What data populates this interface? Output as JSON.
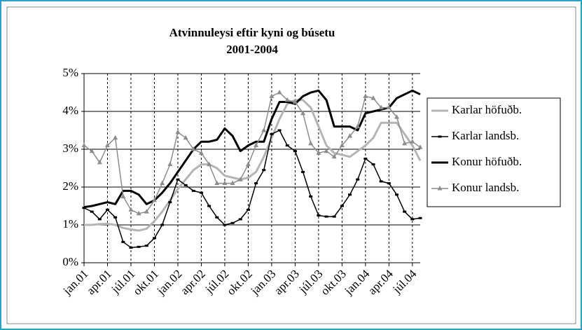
{
  "chart_data": {
    "type": "line",
    "title": "Atvinnuleysi eftir kyni og búsetu",
    "subtitle": "2001-2004",
    "categories": [
      "jan.01",
      null,
      null,
      "apr.01",
      null,
      null,
      "júl.01",
      null,
      null,
      "okt.01",
      null,
      null,
      "jan.02",
      null,
      null,
      "apr.02",
      null,
      null,
      "júl.02",
      null,
      null,
      "okt.02",
      null,
      null,
      "jan.03",
      null,
      null,
      "apr.03",
      null,
      null,
      "júl.03",
      null,
      null,
      "okt.03",
      null,
      null,
      "jan.04",
      null,
      null,
      "apr.04",
      null,
      null,
      "júl.04",
      null
    ],
    "series": [
      {
        "name": "Karlar höfuðb.",
        "color": "#b4b4b4",
        "marker": "none",
        "values": [
          1.0,
          1.0,
          1.02,
          1.03,
          1.0,
          0.92,
          0.88,
          0.85,
          0.9,
          1.1,
          1.35,
          1.65,
          1.95,
          2.2,
          2.45,
          2.6,
          2.6,
          2.5,
          2.3,
          2.25,
          2.2,
          2.25,
          2.4,
          2.8,
          3.3,
          3.8,
          4.2,
          4.3,
          4.3,
          4.1,
          3.6,
          3.1,
          2.9,
          2.85,
          2.8,
          2.95,
          3.1,
          3.3,
          3.7,
          3.7,
          3.7,
          3.4,
          3.1,
          2.7
        ]
      },
      {
        "name": "Karlar landsb.",
        "color": "#000000",
        "marker": "dash",
        "values": [
          1.45,
          1.35,
          1.15,
          1.4,
          1.2,
          0.55,
          0.4,
          0.42,
          0.45,
          0.65,
          1.0,
          1.6,
          2.2,
          2.05,
          1.9,
          1.85,
          1.5,
          1.2,
          1.0,
          1.05,
          1.15,
          1.4,
          2.1,
          2.45,
          3.4,
          3.5,
          3.1,
          2.95,
          2.4,
          1.75,
          1.25,
          1.22,
          1.22,
          1.5,
          1.8,
          2.2,
          2.75,
          2.6,
          2.15,
          2.1,
          1.8,
          1.35,
          1.15,
          1.18
        ]
      },
      {
        "name": "Konur höfuðb.",
        "color": "#000000",
        "marker": "none",
        "values": [
          1.47,
          1.5,
          1.55,
          1.6,
          1.55,
          1.9,
          1.9,
          1.8,
          1.55,
          1.65,
          1.85,
          2.1,
          2.4,
          2.7,
          3.0,
          3.2,
          3.2,
          3.25,
          3.55,
          3.35,
          2.95,
          3.1,
          3.2,
          3.2,
          3.8,
          4.25,
          4.25,
          4.2,
          4.4,
          4.5,
          4.55,
          4.3,
          3.6,
          3.6,
          3.6,
          3.5,
          3.95,
          4.0,
          4.05,
          4.1,
          4.35,
          4.45,
          4.55,
          4.45
        ]
      },
      {
        "name": "Konur landsb.",
        "color": "#8c8c8c",
        "marker": "triangle",
        "values": [
          3.1,
          2.95,
          2.65,
          3.1,
          3.3,
          1.75,
          1.4,
          1.3,
          1.35,
          1.65,
          2.1,
          2.6,
          3.45,
          3.3,
          3.0,
          2.9,
          2.6,
          2.1,
          2.1,
          2.1,
          2.2,
          2.6,
          3.1,
          3.5,
          4.4,
          4.5,
          4.3,
          4.25,
          3.95,
          3.15,
          2.9,
          2.95,
          2.8,
          3.1,
          3.35,
          3.6,
          4.4,
          4.35,
          4.1,
          4.1,
          3.85,
          3.15,
          3.2,
          3.05
        ]
      }
    ],
    "ylim": [
      0,
      5
    ],
    "yticks": [
      {
        "value": 0,
        "label": "0%"
      },
      {
        "value": 1,
        "label": "1%"
      },
      {
        "value": 2,
        "label": "2%"
      },
      {
        "value": 3,
        "label": "3%"
      },
      {
        "value": 4,
        "label": "4%"
      },
      {
        "value": 5,
        "label": "5%"
      }
    ],
    "grid": true,
    "legend": "right"
  }
}
